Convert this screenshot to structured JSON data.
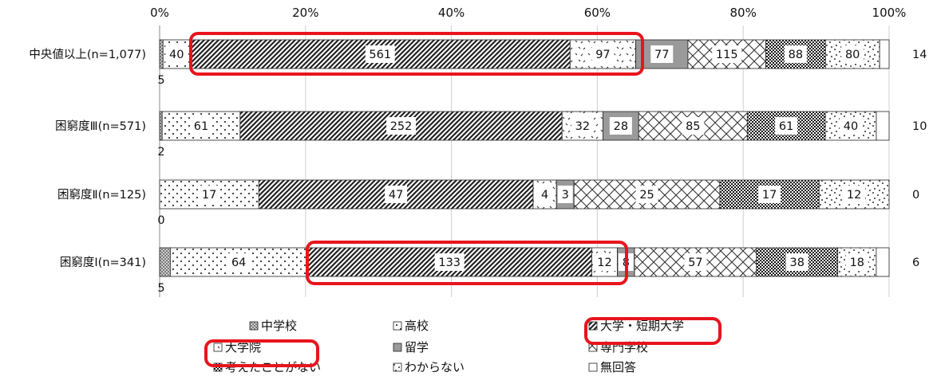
{
  "chart_data": {
    "type": "bar",
    "orientation": "horizontal",
    "stacked": "percent",
    "xlim": [
      0,
      100
    ],
    "x_ticks": [
      "0%",
      "20%",
      "40%",
      "60%",
      "80%",
      "100%"
    ],
    "grid": true,
    "legend_position": "bottom",
    "categories": [
      "中央値以上(n=1,077)",
      "困窮度Ⅲ(n=571)",
      "困窮度Ⅱ(n=125)",
      "困窮度Ⅰ(n=341)"
    ],
    "series": [
      {
        "name": "中学校",
        "values": [
          5,
          2,
          0,
          5
        ]
      },
      {
        "name": "高校",
        "values": [
          40,
          61,
          17,
          64
        ]
      },
      {
        "name": "大学・短期大学",
        "values": [
          561,
          252,
          47,
          133
        ]
      },
      {
        "name": "大学院",
        "values": [
          97,
          32,
          4,
          12
        ]
      },
      {
        "name": "留学",
        "values": [
          77,
          28,
          3,
          8
        ]
      },
      {
        "name": "専門学校",
        "values": [
          115,
          85,
          25,
          57
        ]
      },
      {
        "name": "考えたことがない",
        "values": [
          88,
          61,
          17,
          38
        ]
      },
      {
        "name": "わからない",
        "values": [
          80,
          40,
          12,
          18
        ]
      },
      {
        "name": "無回答",
        "values": [
          14,
          10,
          0,
          6
        ]
      }
    ],
    "highlights": [
      "中央値以上: 大学・短期大学 + 大学院",
      "困窮度Ⅰ: 大学・短期大学 + 大学院",
      "legend: 大学・短期大学",
      "legend: 大学院"
    ],
    "highlight_color": "#e8141d"
  }
}
